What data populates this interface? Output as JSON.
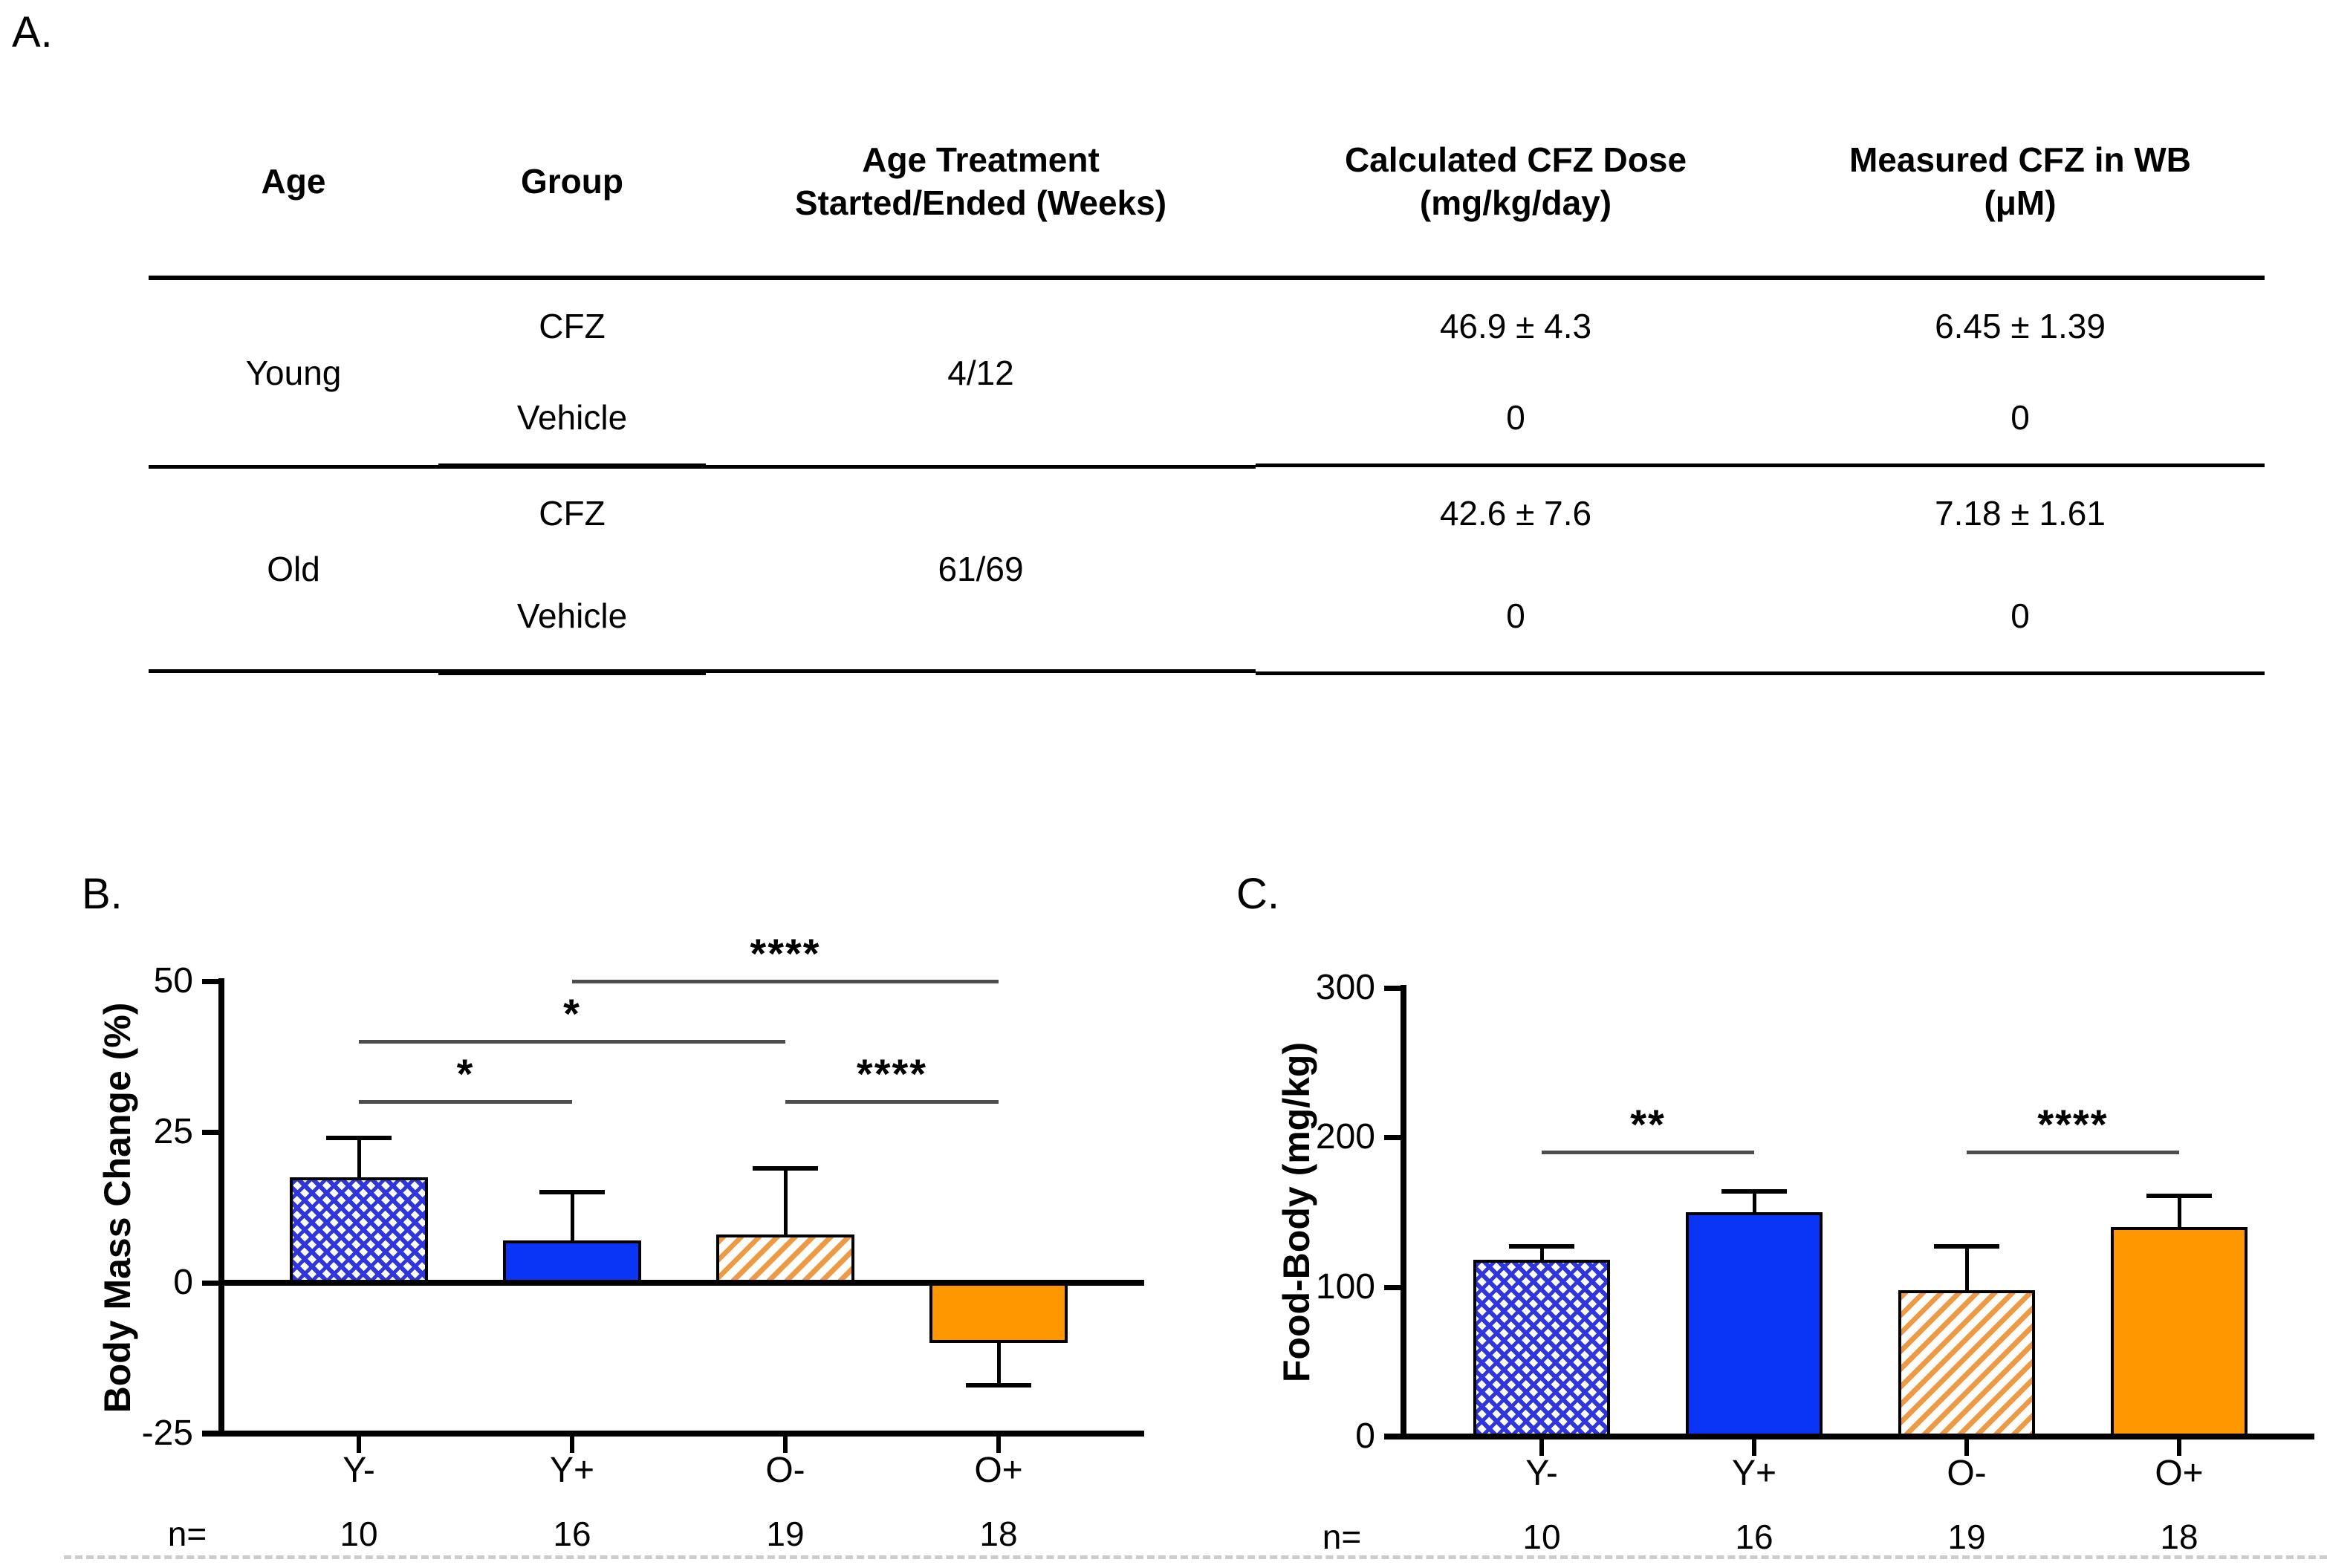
{
  "panel_a": {
    "label": "A.",
    "table": {
      "col_headers": [
        "Age",
        "Group",
        "Age Treatment\nStarted/Ended (Weeks)",
        "Calculated CFZ Dose\n(mg/kg/day)",
        "Measured CFZ in WB\n(μM)"
      ],
      "groups": [
        {
          "age": "Young",
          "treatment_weeks": "4/12",
          "rows": [
            {
              "group": "CFZ",
              "dose": "46.9 ± 4.3",
              "wb": "6.45 ± 1.39"
            },
            {
              "group": "Vehicle",
              "dose": "0",
              "wb": "0"
            }
          ]
        },
        {
          "age": "Old",
          "treatment_weeks": "61/69",
          "rows": [
            {
              "group": "CFZ",
              "dose": "42.6 ± 7.6",
              "wb": "7.18 ± 1.61"
            },
            {
              "group": "Vehicle",
              "dose": "0",
              "wb": "0"
            }
          ]
        }
      ]
    }
  },
  "panel_b": {
    "label": "B."
  },
  "panel_c": {
    "label": "C."
  },
  "colors": {
    "solid_blue": "#0a35f5",
    "solid_orange": "#ff9800",
    "hatch_blue": "#2f36de",
    "hatch_orange": "#ee9a45",
    "bracket_gray": "#4d4d4d",
    "axis_black": "#000000"
  },
  "chart_data": [
    {
      "panel": "B",
      "type": "bar",
      "ylabel": "Body Mass Change (%)",
      "ylim": [
        -25,
        50
      ],
      "yticks": [
        50,
        25,
        0,
        -25
      ],
      "grid": false,
      "categories": [
        "Y-",
        "Y+",
        "O-",
        "O+"
      ],
      "values": [
        17.5,
        7,
        8,
        -10
      ],
      "error_tips": [
        24,
        15,
        19,
        -17
      ],
      "bar_styles": [
        "blue-crosshatch",
        "blue-solid",
        "orange-hatch",
        "orange-solid"
      ],
      "n_prefix": "n=",
      "n_values": [
        "10",
        "16",
        "19",
        "18"
      ],
      "significance": [
        {
          "from": "Y-",
          "to": "Y+",
          "label": "*",
          "level": 30
        },
        {
          "from": "Y-",
          "to": "O-",
          "label": "*",
          "level": 40
        },
        {
          "from": "Y+",
          "to": "O+",
          "label": "****",
          "level": 50
        },
        {
          "from": "O-",
          "to": "O+",
          "label": "****",
          "level": 30
        }
      ]
    },
    {
      "panel": "C",
      "type": "bar",
      "ylabel": "Food-Body (mg/kg)",
      "ylim": [
        0,
        300
      ],
      "yticks": [
        300,
        200,
        100,
        0
      ],
      "grid": false,
      "categories": [
        "Y-",
        "Y+",
        "O-",
        "O+"
      ],
      "values": [
        118,
        150,
        98,
        140
      ],
      "error_tips": [
        127,
        164,
        127,
        161
      ],
      "bar_styles": [
        "blue-crosshatch",
        "blue-solid",
        "orange-hatch",
        "orange-solid"
      ],
      "n_prefix": "n=",
      "n_values": [
        "10",
        "16",
        "19",
        "18"
      ],
      "significance": [
        {
          "from": "Y-",
          "to": "Y+",
          "label": "**",
          "level": 190
        },
        {
          "from": "O-",
          "to": "O+",
          "label": "****",
          "level": 190
        }
      ]
    }
  ]
}
